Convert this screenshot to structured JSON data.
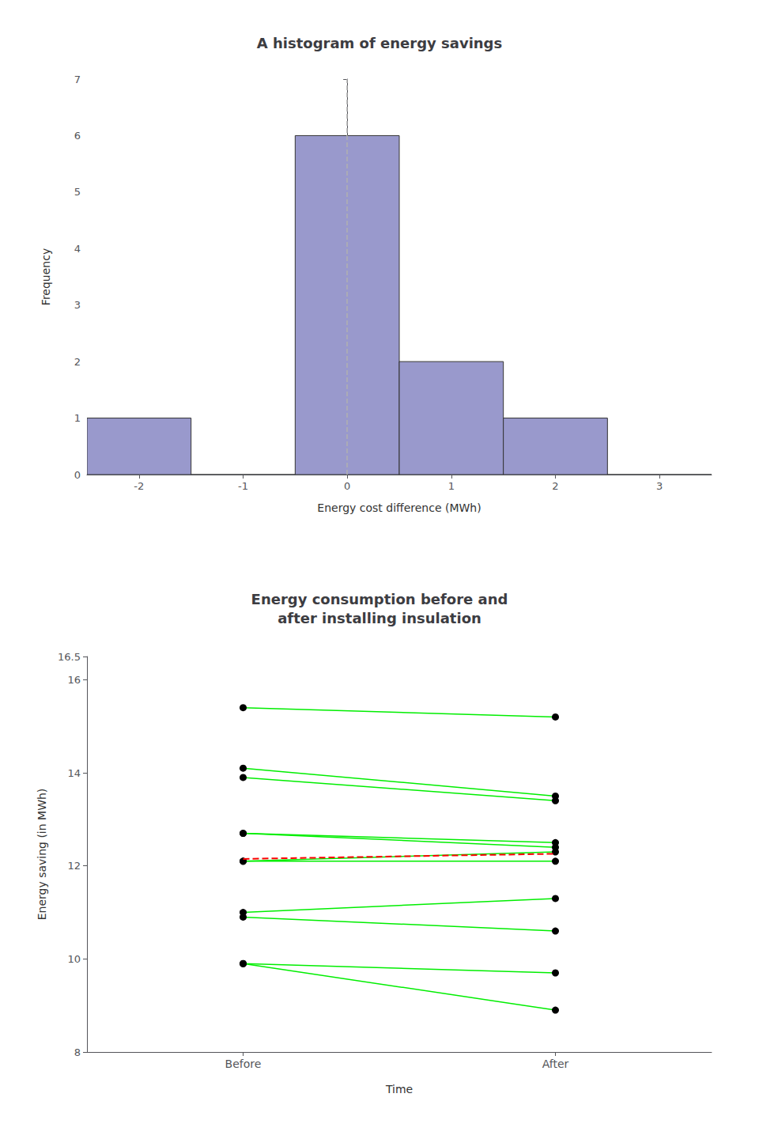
{
  "chart_data": [
    {
      "type": "histogram",
      "title": "A histogram of energy savings",
      "xlabel": "Energy cost difference (MWh)",
      "ylabel": "Frequency",
      "bins": [
        -2.5,
        -1.5,
        -0.5,
        0.5,
        1.5,
        2.5,
        3.5
      ],
      "values": [
        1,
        0,
        6,
        2,
        1,
        0
      ],
      "color": "#9999cc",
      "vlines": [
        {
          "x": 0,
          "color": "#b0b0b0",
          "line_style": "dashed"
        }
      ],
      "xlim": [
        -2.5,
        3.5
      ],
      "xticks": [
        -2,
        -1,
        0,
        1,
        2,
        3
      ],
      "ylim": [
        0,
        7
      ],
      "yticks": [
        0,
        1,
        2,
        3,
        4,
        5,
        6,
        7
      ]
    },
    {
      "type": "line",
      "title": "Energy consumption before and\nafter installing insulation",
      "xlabel": "Time",
      "ylabel": "Energy saving (in MWh)",
      "categories": [
        "Before",
        "After"
      ],
      "series": [
        {
          "values": [
            15.4,
            15.2
          ],
          "color": "#00ee00",
          "marker": "circle",
          "colors": [
            "#000000",
            "#000000"
          ]
        },
        {
          "values": [
            14.1,
            13.5
          ],
          "color": "#00ee00",
          "marker": "circle",
          "colors": [
            "#000000",
            "#000000"
          ]
        },
        {
          "values": [
            13.9,
            13.4
          ],
          "color": "#00ee00",
          "marker": "circle",
          "colors": [
            "#000000",
            "#000000"
          ]
        },
        {
          "values": [
            12.7,
            12.5
          ],
          "color": "#00ee00",
          "marker": "circle",
          "colors": [
            "#000000",
            "#000000"
          ]
        },
        {
          "values": [
            12.7,
            12.4
          ],
          "color": "#00ee00",
          "marker": "circle",
          "colors": [
            "#000000",
            "#000000"
          ]
        },
        {
          "values": [
            12.1,
            12.3
          ],
          "color": "#00ee00",
          "marker": "circle",
          "colors": [
            "#000000",
            "#000000"
          ]
        },
        {
          "values": [
            12.1,
            12.1
          ],
          "color": "#00ee00",
          "marker": "circle",
          "colors": [
            "#000000",
            "#000000"
          ]
        },
        {
          "values": [
            11.0,
            11.3
          ],
          "color": "#00ee00",
          "marker": "circle",
          "colors": [
            "#000000",
            "#000000"
          ]
        },
        {
          "values": [
            10.9,
            10.6
          ],
          "color": "#00ee00",
          "marker": "circle",
          "colors": [
            "#000000",
            "#000000"
          ]
        },
        {
          "values": [
            9.9,
            9.7
          ],
          "color": "#00ee00",
          "marker": "circle",
          "colors": [
            "#000000",
            "#000000"
          ]
        },
        {
          "values": [
            9.9,
            8.9
          ],
          "color": "#00ee00",
          "marker": "circle",
          "colors": [
            "#000000",
            "#000000"
          ]
        },
        {
          "values": [
            12.15,
            12.26
          ],
          "color": "#ff0000",
          "marker": "none",
          "line_style": "dashed"
        }
      ],
      "ylim": [
        8,
        16.5
      ],
      "yticks": [
        8,
        10,
        12,
        14,
        16
      ]
    }
  ]
}
